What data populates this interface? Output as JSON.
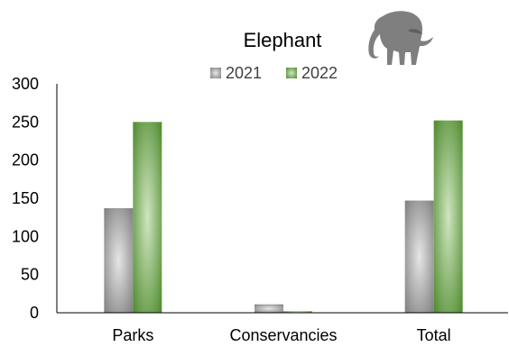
{
  "chart_data": {
    "type": "bar",
    "title": "Elephant",
    "categories": [
      "Parks",
      "Conservancies",
      "Total"
    ],
    "series": [
      {
        "name": "2021",
        "values": [
          137,
          11,
          147
        ]
      },
      {
        "name": "2022",
        "values": [
          250,
          2,
          252
        ]
      }
    ],
    "ylim": [
      0,
      300
    ],
    "yticks": [
      0,
      50,
      100,
      150,
      200,
      250,
      300
    ],
    "grid": false,
    "legend_position": "top-center",
    "colors": {
      "2021": "#a6a6a6",
      "2022": "#70ad47"
    },
    "decoration": "elephant-silhouette"
  }
}
